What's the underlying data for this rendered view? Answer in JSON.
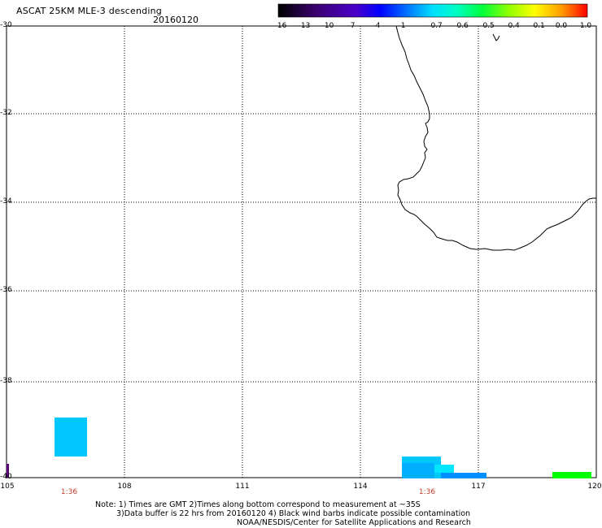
{
  "header": {
    "title": "ASCAT 25KM MLE-3 descending",
    "date": "20160120"
  },
  "colorbar": {
    "labels": [
      "-16",
      "-13",
      "-10",
      "-7",
      "-4",
      "-1",
      "-0.7",
      "-0.6",
      "-0.5",
      "-0.4",
      "-0.1",
      "0.0",
      "1.0"
    ]
  },
  "map": {
    "lat_labels": [
      "-30",
      "-32",
      "-34",
      "-36",
      "-38",
      "-40"
    ],
    "lon_labels": [
      "105",
      "108",
      "111",
      "114",
      "117",
      "120"
    ],
    "pass_times": [
      "1:36",
      "1:36"
    ],
    "coastline_color": "#000000",
    "swath_colors": {
      "cyan": "#00c8ff",
      "light_cyan": "#00e6ff",
      "mid_blue": "#00b0ff",
      "blue": "#0090ff",
      "green": "#00ff00",
      "purple": "#5a007a"
    }
  },
  "footer": {
    "note1": "Note: 1) Times are GMT 2)Times along bottom correspond to measurement at ~35S",
    "note2": "3)Data buffer is 22 hrs from 20160120 4) Black wind barbs indicate possible contamination",
    "note3": "NOAA/NESDIS/Center for Satellite Applications and Research"
  }
}
